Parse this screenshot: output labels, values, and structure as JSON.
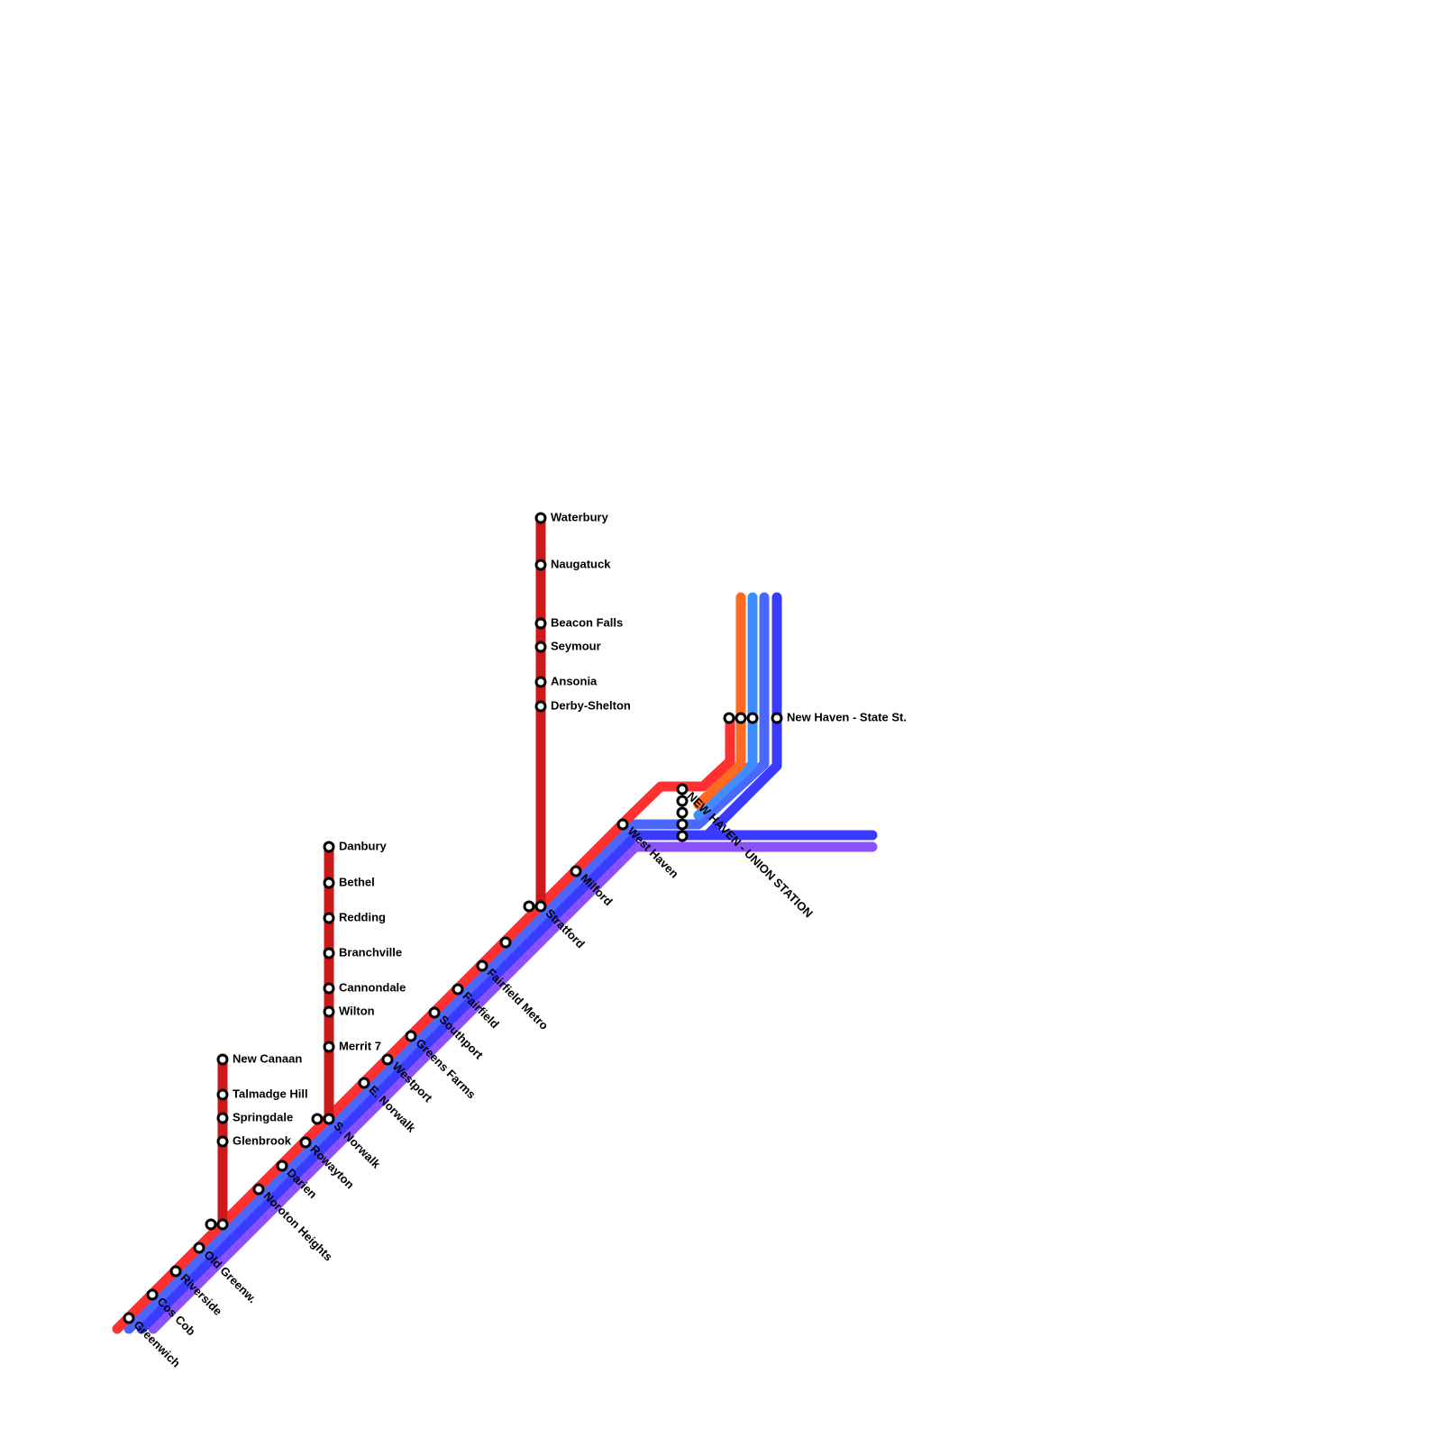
{
  "stations": [
    "Greenwich",
    "Cos Cob",
    "Riverside",
    "Old Greenw.",
    "Noroton Heights",
    "Darien",
    "Rowayton",
    "S. Norwalk",
    "E. Norwalk",
    "Westport",
    "Greens Farms",
    "Southport",
    "Fairfield",
    "Fairfield Metro",
    "Stratford",
    "Milford",
    "West Haven",
    "NEW HAVEN - UNION STATION",
    "New Haven - State St.",
    "New Canaan",
    "Talmadge Hill",
    "Springdale",
    "Glenbrook",
    "Danbury",
    "Bethel",
    "Redding",
    "Branchville",
    "Cannondale",
    "Wilton",
    "Merrit 7",
    "Waterbury",
    "Naugatuck",
    "Beacon Falls",
    "Seymour",
    "Ansonia",
    "Derby-Shelton"
  ]
}
